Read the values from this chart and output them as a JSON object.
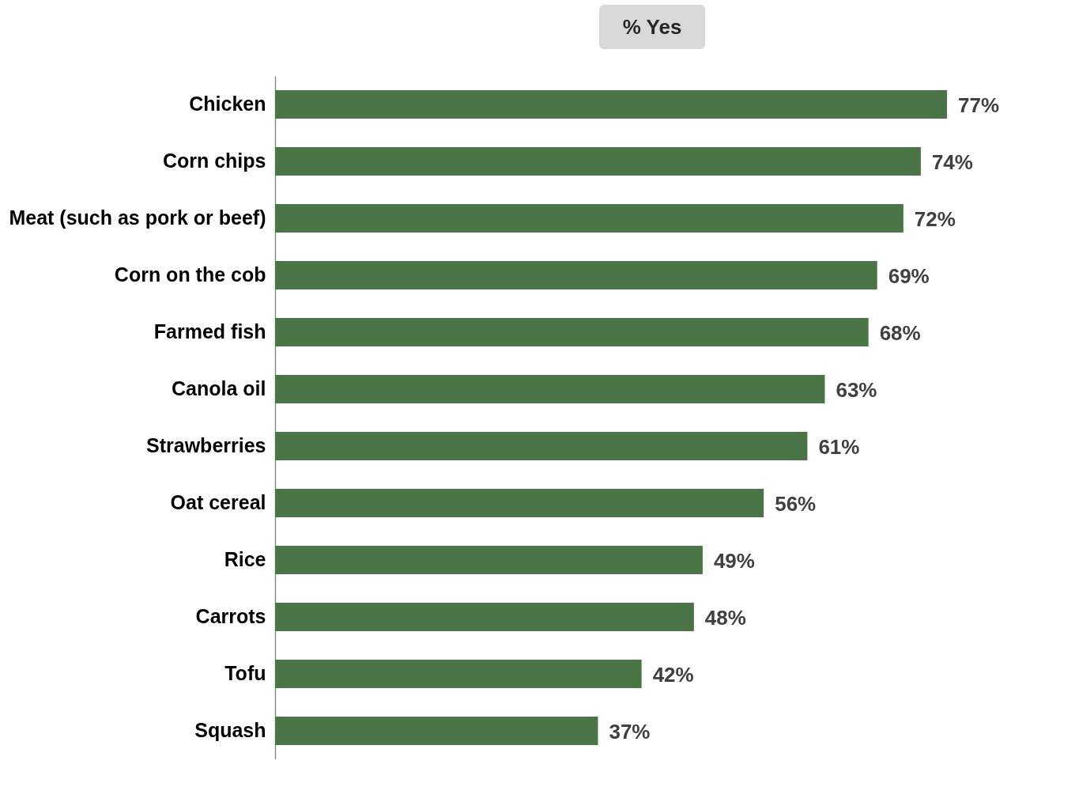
{
  "chart_data": {
    "type": "bar",
    "orientation": "horizontal",
    "title": "% Yes",
    "categories": [
      "Chicken",
      "Corn chips",
      "Meat (such as pork or beef)",
      "Corn on the cob",
      "Farmed fish",
      "Canola oil",
      "Strawberries",
      "Oat cereal",
      "Rice",
      "Carrots",
      "Tofu",
      "Squash"
    ],
    "values": [
      77,
      74,
      72,
      69,
      68,
      63,
      61,
      56,
      49,
      48,
      42,
      37
    ],
    "value_labels": [
      "77%",
      "74%",
      "72%",
      "69%",
      "68%",
      "63%",
      "61%",
      "56%",
      "49%",
      "48%",
      "42%",
      "37%"
    ],
    "color": "#4a7446"
  }
}
